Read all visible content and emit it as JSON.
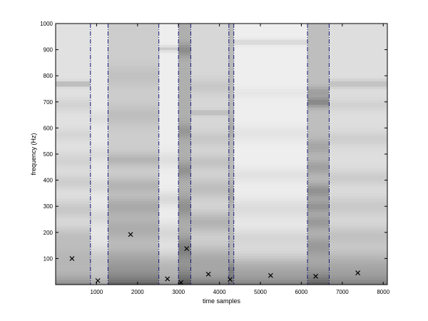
{
  "chart_data": {
    "type": "heatmap",
    "title": "",
    "xlabel": "time samples",
    "ylabel": "frequency (Hz)",
    "xlim": [
      0,
      8100
    ],
    "ylim": [
      0,
      1000
    ],
    "xticks": [
      1000,
      2000,
      3000,
      4000,
      5000,
      6000,
      7000,
      8000
    ],
    "yticks": [
      100,
      200,
      300,
      400,
      500,
      600,
      700,
      800,
      900,
      1000
    ],
    "colormap": "grayscale",
    "segment_boundaries": [
      850,
      1280,
      2520,
      3000,
      3300,
      4230,
      4350,
      6150,
      6680
    ],
    "segment_boundary_color": "#1a1a7a",
    "segments": [
      {
        "start": 0,
        "end": 850,
        "base": 225,
        "bottom_dark": 90,
        "bands": [
          [
            115,
            60,
            30
          ],
          [
            190,
            40,
            25
          ],
          [
            290,
            35,
            25
          ],
          [
            395,
            30,
            20
          ],
          [
            475,
            30,
            15
          ],
          [
            575,
            25,
            12
          ],
          [
            690,
            25,
            15
          ],
          [
            770,
            10,
            45
          ]
        ]
      },
      {
        "start": 850,
        "end": 1280,
        "base": 232,
        "bottom_dark": 70,
        "bands": [
          [
            100,
            40,
            20
          ],
          [
            260,
            30,
            15
          ],
          [
            380,
            25,
            15
          ],
          [
            500,
            30,
            12
          ],
          [
            640,
            25,
            10
          ]
        ]
      },
      {
        "start": 1280,
        "end": 2520,
        "base": 205,
        "bottom_dark": 110,
        "bands": [
          [
            90,
            60,
            25
          ],
          [
            215,
            45,
            30
          ],
          [
            300,
            40,
            35
          ],
          [
            380,
            30,
            25
          ],
          [
            480,
            25,
            25
          ],
          [
            650,
            40,
            15
          ],
          [
            800,
            40,
            12
          ]
        ]
      },
      {
        "start": 2520,
        "end": 3000,
        "base": 238,
        "bottom_dark": 95,
        "bands": [
          [
            80,
            50,
            30
          ],
          [
            200,
            40,
            20
          ],
          [
            330,
            30,
            20
          ],
          [
            480,
            30,
            15
          ],
          [
            905,
            10,
            35
          ]
        ]
      },
      {
        "start": 3000,
        "end": 3300,
        "base": 175,
        "bottom_dark": 100,
        "bands": [
          [
            140,
            40,
            40
          ],
          [
            300,
            40,
            30
          ],
          [
            440,
            30,
            30
          ],
          [
            590,
            30,
            25
          ],
          [
            900,
            25,
            35
          ]
        ]
      },
      {
        "start": 3300,
        "end": 4230,
        "base": 215,
        "bottom_dark": 100,
        "bands": [
          [
            100,
            50,
            30
          ],
          [
            240,
            40,
            35
          ],
          [
            370,
            40,
            25
          ],
          [
            470,
            30,
            20
          ],
          [
            560,
            30,
            15
          ],
          [
            660,
            10,
            30
          ],
          [
            760,
            30,
            15
          ]
        ]
      },
      {
        "start": 4230,
        "end": 4350,
        "base": 185,
        "bottom_dark": 80,
        "bands": [
          [
            60,
            30,
            30
          ],
          [
            350,
            40,
            20
          ],
          [
            600,
            40,
            15
          ]
        ]
      },
      {
        "start": 4350,
        "end": 6150,
        "base": 238,
        "bottom_dark": 110,
        "bands": [
          [
            70,
            50,
            35
          ],
          [
            180,
            40,
            20
          ],
          [
            290,
            40,
            18
          ],
          [
            420,
            30,
            12
          ],
          [
            580,
            30,
            10
          ],
          [
            735,
            20,
            8
          ],
          [
            930,
            10,
            25
          ]
        ]
      },
      {
        "start": 6150,
        "end": 6680,
        "base": 190,
        "bottom_dark": 105,
        "bands": [
          [
            150,
            40,
            30
          ],
          [
            240,
            30,
            35
          ],
          [
            300,
            25,
            40
          ],
          [
            360,
            30,
            45
          ],
          [
            450,
            30,
            30
          ],
          [
            530,
            30,
            25
          ],
          [
            700,
            20,
            55
          ],
          [
            740,
            20,
            30
          ]
        ]
      },
      {
        "start": 6680,
        "end": 8100,
        "base": 222,
        "bottom_dark": 95,
        "bands": [
          [
            80,
            60,
            30
          ],
          [
            190,
            40,
            25
          ],
          [
            300,
            40,
            20
          ],
          [
            410,
            30,
            18
          ],
          [
            560,
            30,
            15
          ],
          [
            690,
            25,
            12
          ],
          [
            770,
            15,
            30
          ]
        ]
      }
    ],
    "markers": {
      "symbol": "x",
      "points": [
        {
          "x": 400,
          "y": 100
        },
        {
          "x": 1030,
          "y": 15
        },
        {
          "x": 1830,
          "y": 192
        },
        {
          "x": 2730,
          "y": 22
        },
        {
          "x": 3060,
          "y": 8
        },
        {
          "x": 3200,
          "y": 138
        },
        {
          "x": 3730,
          "y": 40
        },
        {
          "x": 4260,
          "y": 20
        },
        {
          "x": 5250,
          "y": 35
        },
        {
          "x": 6350,
          "y": 32
        },
        {
          "x": 7380,
          "y": 45
        }
      ]
    }
  }
}
